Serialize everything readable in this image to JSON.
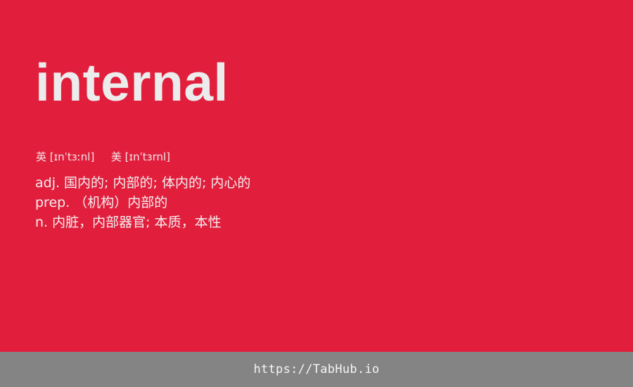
{
  "entry": {
    "word": "internal",
    "pronunciation": {
      "uk_label": "英",
      "uk_ipa": "[ɪnˈtɜːnl]",
      "us_label": "美",
      "us_ipa": "[ɪnˈtɜrnl]"
    },
    "definitions": [
      {
        "text": "adj. 国内的; 内部的; 体内的; 内心的"
      },
      {
        "text": "prep. （机构）内部的"
      },
      {
        "text": "n. 内脏，内部器官; 本质，本性"
      }
    ]
  },
  "footer": {
    "link_text": "https://TabHub.io"
  },
  "colors": {
    "background": "#e11f3d",
    "footer": "#848484",
    "text": "#ececec"
  }
}
